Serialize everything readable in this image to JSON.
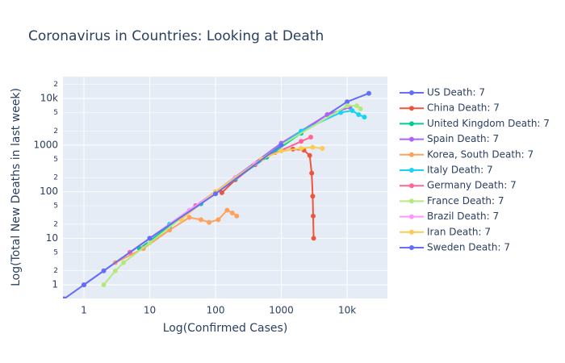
{
  "chart_data": {
    "type": "scatter",
    "title": "Coronavirus in Countries: Looking at Death",
    "x_label": "Log(Confirmed Cases)",
    "y_label": "Log(Total New Deaths in last week)",
    "log_x": true,
    "log_y": true,
    "grid": true,
    "legend": "right",
    "xlim": [
      0.48,
      41000
    ],
    "ylim": [
      0.51,
      29500
    ],
    "xticks": [
      1,
      10,
      100,
      1000,
      {
        "value": 10000,
        "label": "10k"
      }
    ],
    "yticks": [
      1,
      {
        "value": 2,
        "label": "2"
      },
      {
        "value": 5,
        "label": "5"
      },
      10,
      {
        "value": 20,
        "label": "2"
      },
      {
        "value": 50,
        "label": "5"
      },
      100,
      {
        "value": 200,
        "label": "2"
      },
      {
        "value": 500,
        "label": "5"
      },
      1000,
      {
        "value": 2000,
        "label": "2"
      },
      {
        "value": 5000,
        "label": "5"
      },
      {
        "value": 10000,
        "label": "10k"
      },
      {
        "value": 20000,
        "label": "2"
      }
    ],
    "series": [
      {
        "name": "US Death: 7",
        "color": "#636efa",
        "x": [
          1,
          2,
          5,
          10,
          50,
          200,
          1000,
          5000,
          10000,
          21400
        ],
        "values": [
          1,
          2,
          5,
          10,
          50,
          200,
          1000,
          4500,
          8500,
          12900
        ]
      },
      {
        "name": "China Death: 7",
        "color": "#ef553b",
        "x": [
          125,
          200,
          400,
          800,
          1500,
          2200,
          2700,
          2900,
          3000,
          3050,
          3100
        ],
        "values": [
          95,
          180,
          380,
          700,
          820,
          780,
          600,
          250,
          80,
          30,
          10
        ]
      },
      {
        "name": "United Kingdom Death: 7",
        "color": "#00cc96",
        "x": [
          7,
          20,
          60,
          200,
          600,
          2000
        ],
        "values": [
          6,
          18,
          55,
          190,
          550,
          1800
        ]
      },
      {
        "name": "Spain Death: 7",
        "color": "#ab63fa",
        "x": [
          10,
          100,
          1000,
          5000,
          11000
        ],
        "values": [
          10,
          100,
          1100,
          4500,
          6500
        ]
      },
      {
        "name": "Korea, South Death: 7",
        "color": "#FFA15A",
        "x": [
          3,
          8,
          20,
          40,
          60,
          80,
          110,
          150,
          180,
          210
        ],
        "values": [
          3,
          6,
          15,
          28,
          25,
          22,
          25,
          40,
          35,
          30
        ]
      },
      {
        "name": "Italy Death: 7",
        "color": "#19d3f3",
        "x": [
          20,
          200,
          2000,
          8000,
          12000,
          15000,
          18300
        ],
        "values": [
          20,
          200,
          2000,
          5000,
          5500,
          4500,
          4000
        ]
      },
      {
        "name": "Germany Death: 7",
        "color": "#FF6692",
        "x": [
          5,
          50,
          500,
          2000,
          2800
        ],
        "values": [
          5,
          50,
          500,
          1200,
          1480
        ]
      },
      {
        "name": "France Death: 7",
        "color": "#B6E880",
        "x": [
          2,
          3,
          4,
          10,
          100,
          1000,
          10000,
          14000,
          16000
        ],
        "values": [
          1,
          2,
          3,
          8,
          100,
          1000,
          7000,
          7000,
          6000
        ]
      },
      {
        "name": "Brazil Death: 7",
        "color": "#FF97FF",
        "x": [
          10,
          40,
          100,
          200,
          400
        ],
        "values": [
          10,
          40,
          100,
          200,
          400
        ]
      },
      {
        "name": "Iran Death: 7",
        "color": "#FECB52",
        "x": [
          30,
          100,
          500,
          1000,
          2000,
          3000,
          4200
        ],
        "values": [
          25,
          100,
          500,
          750,
          850,
          900,
          850
        ]
      },
      {
        "name": "Sweden Death: 7",
        "color": "#636efa",
        "x": [
          0.5,
          1,
          10,
          100,
          1000
        ],
        "values": [
          0.5,
          1,
          10,
          90,
          1000
        ]
      }
    ]
  }
}
